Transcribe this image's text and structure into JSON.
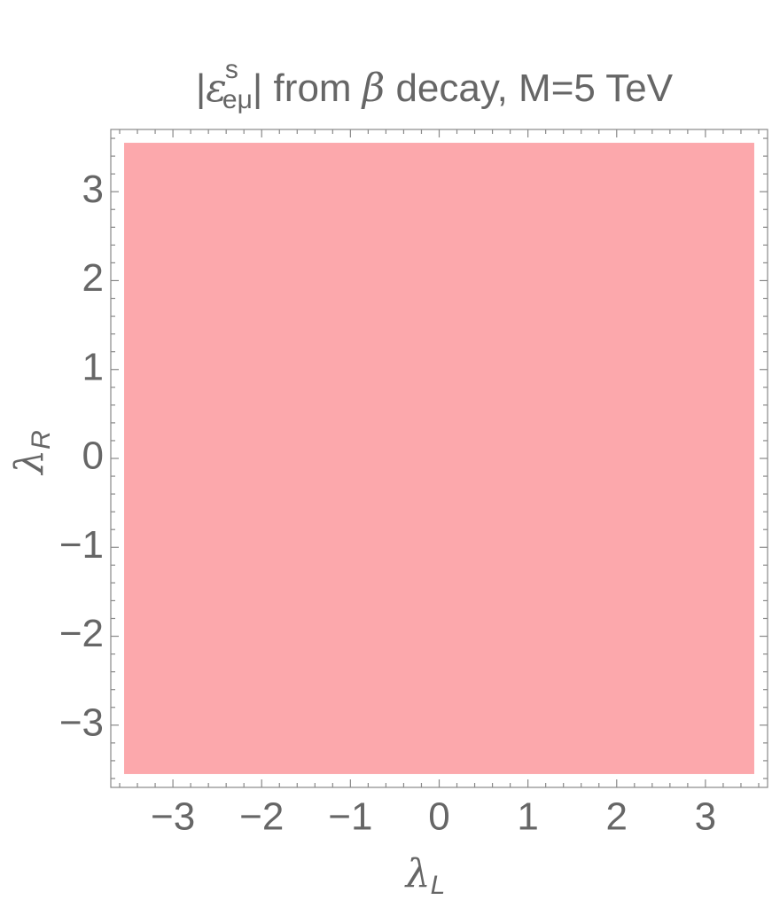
{
  "chart_data": {
    "type": "region",
    "title_parts": [
      "|",
      "ε",
      "s",
      "eμ",
      "| from ",
      "β",
      " decay, M=5 TeV"
    ],
    "xlabel": {
      "symbol": "λ",
      "subscript": "L"
    },
    "ylabel": {
      "symbol": "λ",
      "subscript": "R"
    },
    "regions": [
      {
        "color": "#fca8ac",
        "x": [
          -3.55,
          3.55
        ],
        "y": [
          -3.55,
          3.55
        ]
      }
    ],
    "xlim": [
      -3.7,
      3.7
    ],
    "ylim": [
      -3.7,
      3.7
    ],
    "xticks": [
      {
        "value": -3,
        "label": "−3"
      },
      {
        "value": -2,
        "label": "−2"
      },
      {
        "value": -1,
        "label": "−1"
      },
      0,
      1,
      2,
      3
    ],
    "yticks": [
      {
        "value": -3,
        "label": "−3"
      },
      {
        "value": -2,
        "label": "−2"
      },
      {
        "value": -1,
        "label": "−1"
      },
      0,
      1,
      2,
      3
    ],
    "xminor": [
      -3.6,
      -3.4,
      -3.2,
      -2.8,
      -2.6,
      -2.4,
      -2.2,
      -1.8,
      -1.6,
      -1.4,
      -1.2,
      -0.8,
      -0.6,
      -0.4,
      -0.2,
      0.2,
      0.4,
      0.6,
      0.8,
      1.2,
      1.4,
      1.6,
      1.8,
      2.2,
      2.4,
      2.6,
      2.8,
      3.2,
      3.4,
      3.6
    ],
    "yminor": [
      -3.6,
      -3.4,
      -3.2,
      -2.8,
      -2.6,
      -2.4,
      -2.2,
      -1.8,
      -1.6,
      -1.4,
      -1.2,
      -0.8,
      -0.6,
      -0.4,
      -0.2,
      0.2,
      0.4,
      0.6,
      0.8,
      1.2,
      1.4,
      1.6,
      1.8,
      2.2,
      2.4,
      2.6,
      2.8,
      3.2,
      3.4,
      3.6
    ]
  }
}
